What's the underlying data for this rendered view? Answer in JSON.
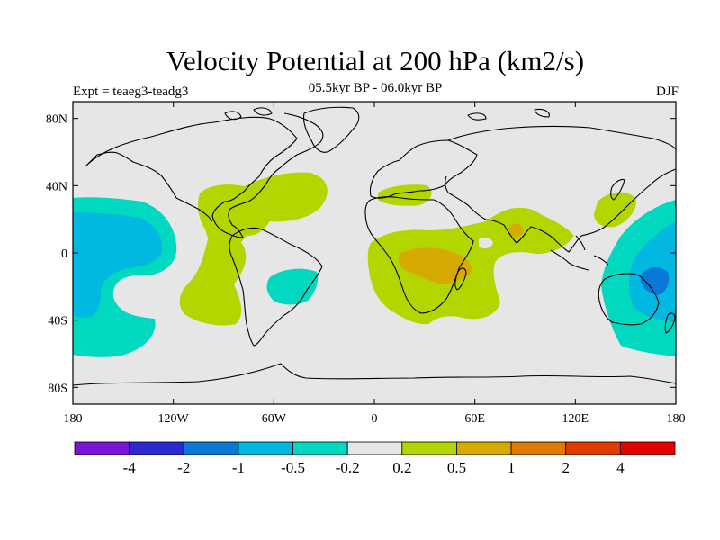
{
  "header": {
    "title": "Velocity Potential at 200 hPa (km2/s)",
    "subtitle": "05.5kyr BP - 06.0kyr BP",
    "left_label": "Expt = teaeg3-teadg3",
    "right_label": "DJF"
  },
  "axes": {
    "lat_ticks": [
      {
        "value": 80,
        "label": "80N"
      },
      {
        "value": 40,
        "label": "40N"
      },
      {
        "value": 0,
        "label": "0"
      },
      {
        "value": -40,
        "label": "40S"
      },
      {
        "value": -80,
        "label": "80S"
      }
    ],
    "lon_ticks": [
      {
        "value": -180,
        "label": "180"
      },
      {
        "value": -120,
        "label": "120W"
      },
      {
        "value": -60,
        "label": "60W"
      },
      {
        "value": 0,
        "label": "0"
      },
      {
        "value": 60,
        "label": "60E"
      },
      {
        "value": 120,
        "label": "120E"
      },
      {
        "value": 180,
        "label": "180"
      }
    ],
    "lon_range": [
      -180,
      180
    ],
    "lat_range": [
      -90,
      90
    ]
  },
  "colorbar": {
    "colors": [
      "#7a14d6",
      "#2a2ad0",
      "#0a78d6",
      "#00b8e0",
      "#00d8c0",
      "#e6e6e6",
      "#b4d600",
      "#d6aa00",
      "#e07a00",
      "#e03c00",
      "#e60000"
    ],
    "labels": [
      "-4",
      "-2",
      "-1",
      "-0.5",
      "-0.2",
      "0.2",
      "0.5",
      "1",
      "2",
      "4"
    ]
  },
  "style": {
    "background": "#e6e6e6",
    "coast_color": "#000000"
  }
}
